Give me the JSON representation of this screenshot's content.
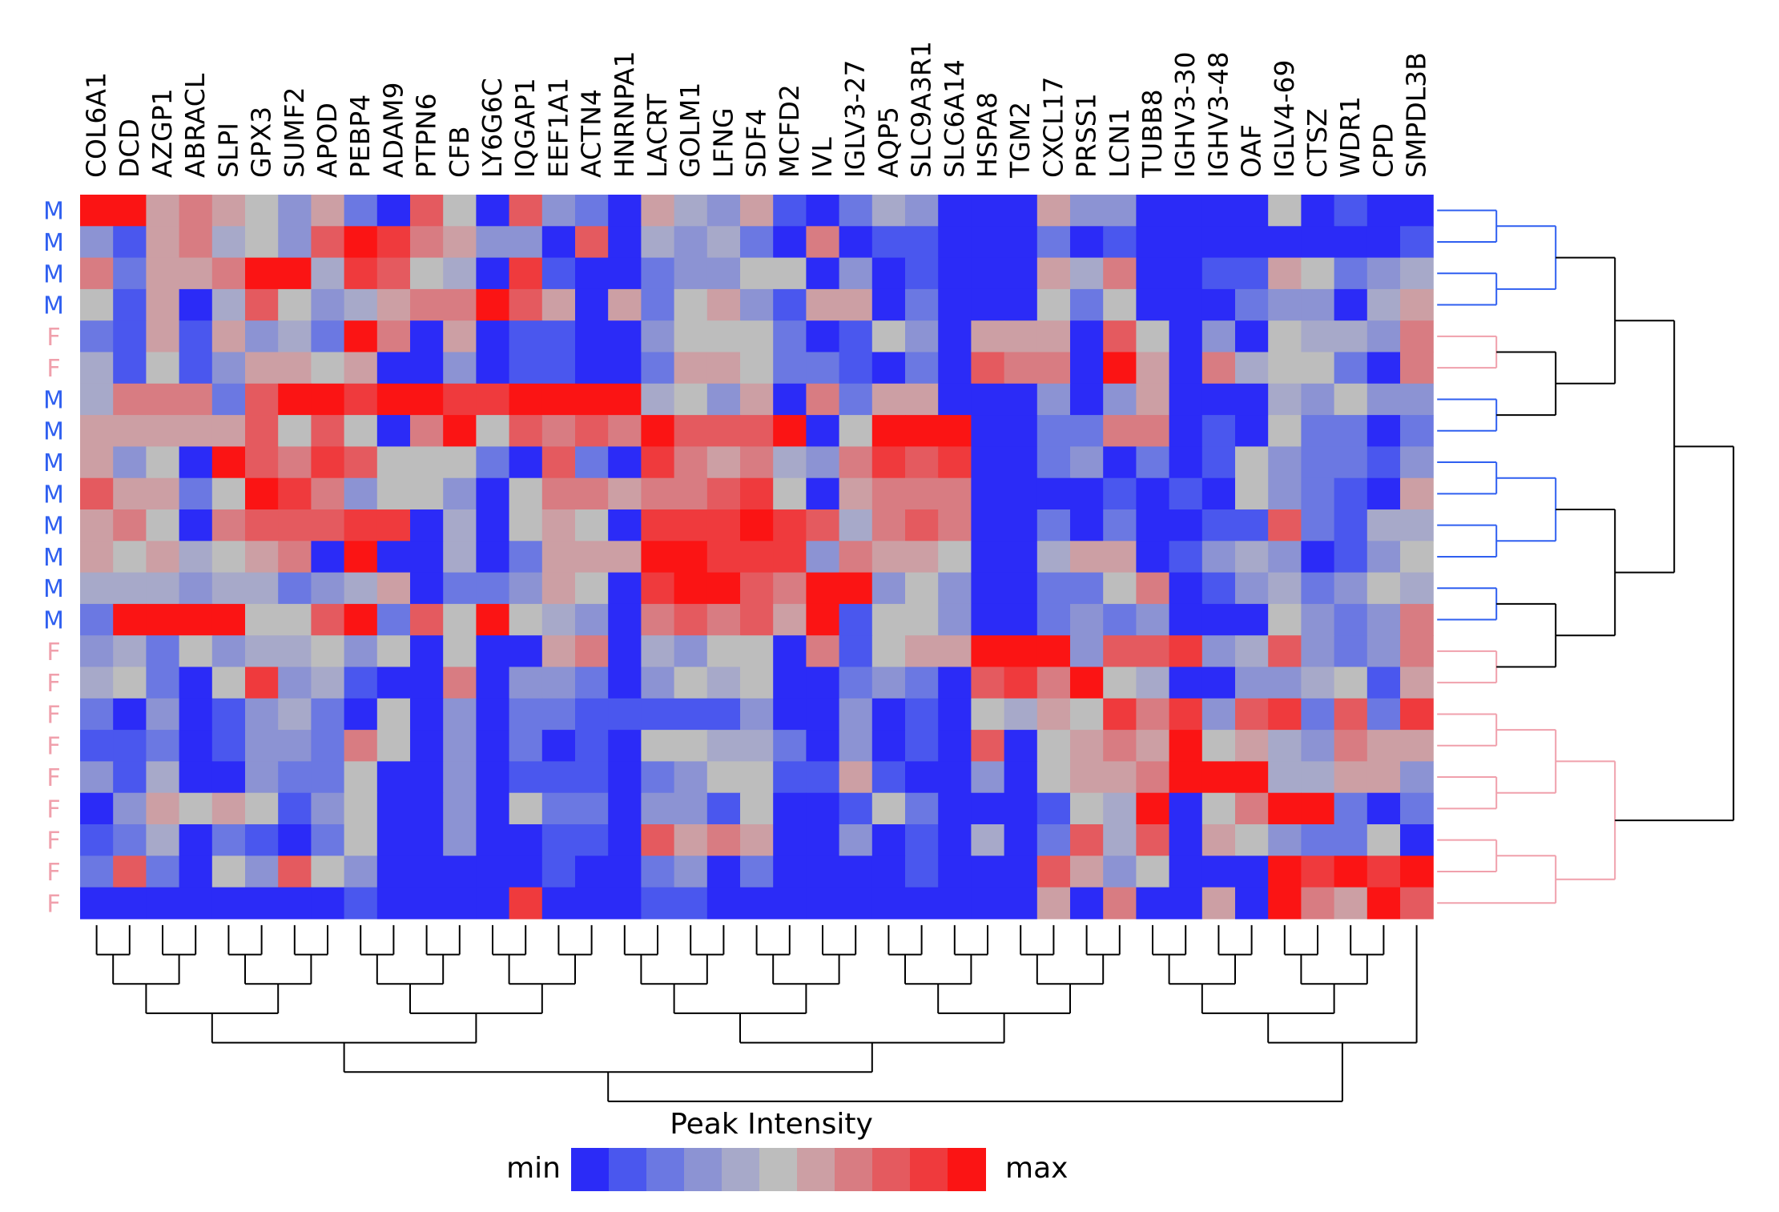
{
  "chart_data": {
    "type": "heatmap",
    "title": "",
    "columns": [
      "COL6A1",
      "DCD",
      "AZGP1",
      "ABRACL",
      "SLPI",
      "GPX3",
      "SUMF2",
      "APOD",
      "PEBP4",
      "ADAM9",
      "PTPN6",
      "CFB",
      "LY6G6C",
      "IQGAP1",
      "EEF1A1",
      "ACTN4",
      "HNRNPA1",
      "LACRT",
      "GOLM1",
      "LFNG",
      "SDF4",
      "MCFD2",
      "IVL",
      "IGLV3-27",
      "AQP5",
      "SLC9A3R1",
      "SLC6A14",
      "HSPA8",
      "TGM2",
      "CXCL17",
      "PRSS1",
      "LCN1",
      "TUBB8",
      "IGHV3-30",
      "IGHV3-48",
      "OAF",
      "IGLV4-69",
      "CTSZ",
      "WDR1",
      "CPD",
      "SMPDL3B"
    ],
    "rows": [
      "M",
      "M",
      "M",
      "M",
      "F",
      "F",
      "M",
      "M",
      "M",
      "M",
      "M",
      "M",
      "M",
      "M",
      "F",
      "F",
      "F",
      "F",
      "F",
      "F",
      "F",
      "F",
      "F"
    ],
    "value_scale": "level 0 (min) to 10 (max)",
    "values": [
      [
        10,
        10,
        6,
        7,
        6,
        5,
        3,
        6,
        2,
        0,
        8,
        5,
        0,
        8,
        3,
        2,
        0,
        6,
        4,
        3,
        6,
        1,
        0,
        2,
        4,
        3,
        0,
        0,
        0,
        6,
        3,
        3,
        0,
        0,
        0,
        0,
        5,
        0,
        1,
        0,
        0
      ],
      [
        3,
        1,
        6,
        7,
        4,
        5,
        3,
        8,
        10,
        9,
        7,
        6,
        3,
        3,
        0,
        8,
        0,
        4,
        3,
        4,
        2,
        0,
        7,
        0,
        1,
        1,
        0,
        0,
        0,
        2,
        0,
        1,
        0,
        0,
        0,
        0,
        0,
        0,
        0,
        0,
        1
      ],
      [
        7,
        2,
        6,
        6,
        7,
        10,
        10,
        4,
        9,
        8,
        5,
        4,
        0,
        9,
        1,
        0,
        0,
        2,
        3,
        3,
        5,
        5,
        0,
        3,
        0,
        1,
        0,
        0,
        0,
        6,
        4,
        7,
        0,
        0,
        1,
        1,
        6,
        5,
        2,
        3,
        4
      ],
      [
        5,
        1,
        6,
        0,
        4,
        8,
        5,
        3,
        4,
        6,
        7,
        7,
        10,
        8,
        6,
        0,
        6,
        2,
        5,
        6,
        3,
        1,
        6,
        6,
        0,
        2,
        0,
        0,
        0,
        5,
        2,
        5,
        0,
        0,
        0,
        2,
        3,
        3,
        0,
        4,
        6
      ],
      [
        2,
        1,
        6,
        1,
        6,
        3,
        4,
        2,
        10,
        7,
        0,
        6,
        0,
        1,
        1,
        0,
        0,
        3,
        5,
        5,
        5,
        2,
        0,
        1,
        5,
        3,
        0,
        6,
        6,
        6,
        0,
        8,
        5,
        0,
        3,
        0,
        5,
        4,
        4,
        3,
        7
      ],
      [
        4,
        1,
        5,
        1,
        3,
        6,
        6,
        5,
        6,
        0,
        0,
        3,
        0,
        1,
        1,
        0,
        0,
        2,
        6,
        6,
        5,
        2,
        2,
        1,
        0,
        2,
        0,
        8,
        7,
        7,
        0,
        10,
        6,
        0,
        7,
        4,
        5,
        5,
        2,
        0,
        7
      ],
      [
        4,
        7,
        7,
        7,
        2,
        8,
        10,
        10,
        9,
        10,
        10,
        9,
        9,
        10,
        10,
        10,
        10,
        4,
        5,
        3,
        6,
        0,
        7,
        2,
        6,
        6,
        0,
        0,
        0,
        3,
        0,
        3,
        6,
        0,
        0,
        0,
        4,
        3,
        5,
        3,
        3
      ],
      [
        6,
        6,
        6,
        6,
        6,
        8,
        5,
        8,
        5,
        0,
        7,
        10,
        5,
        8,
        7,
        8,
        7,
        10,
        8,
        8,
        8,
        10,
        0,
        5,
        10,
        10,
        10,
        0,
        0,
        2,
        2,
        7,
        7,
        0,
        1,
        0,
        5,
        2,
        2,
        0,
        2
      ],
      [
        6,
        3,
        5,
        0,
        10,
        8,
        7,
        9,
        8,
        5,
        5,
        5,
        2,
        0,
        8,
        2,
        0,
        9,
        7,
        6,
        7,
        4,
        3,
        7,
        9,
        8,
        9,
        0,
        0,
        2,
        3,
        0,
        2,
        0,
        1,
        5,
        3,
        2,
        2,
        1,
        3
      ],
      [
        8,
        6,
        6,
        2,
        5,
        10,
        9,
        7,
        3,
        5,
        5,
        3,
        0,
        5,
        7,
        7,
        6,
        7,
        7,
        8,
        9,
        5,
        0,
        6,
        7,
        7,
        7,
        0,
        0,
        0,
        0,
        1,
        0,
        1,
        0,
        5,
        3,
        2,
        1,
        0,
        6
      ],
      [
        6,
        7,
        5,
        0,
        7,
        8,
        8,
        8,
        9,
        9,
        0,
        4,
        0,
        5,
        6,
        5,
        0,
        9,
        9,
        9,
        10,
        9,
        8,
        4,
        7,
        8,
        7,
        0,
        0,
        2,
        0,
        2,
        0,
        0,
        1,
        1,
        8,
        2,
        1,
        4,
        4
      ],
      [
        6,
        5,
        6,
        4,
        5,
        6,
        7,
        0,
        10,
        0,
        0,
        4,
        0,
        2,
        6,
        6,
        6,
        10,
        10,
        9,
        9,
        9,
        3,
        7,
        6,
        6,
        5,
        0,
        0,
        4,
        6,
        6,
        0,
        1,
        3,
        4,
        3,
        0,
        1,
        3,
        5
      ],
      [
        4,
        4,
        4,
        3,
        4,
        4,
        2,
        3,
        4,
        6,
        0,
        2,
        2,
        3,
        6,
        5,
        0,
        9,
        10,
        10,
        8,
        7,
        10,
        10,
        3,
        5,
        3,
        0,
        0,
        2,
        2,
        5,
        7,
        0,
        1,
        3,
        4,
        2,
        3,
        5,
        4
      ],
      [
        2,
        10,
        10,
        10,
        10,
        5,
        5,
        8,
        10,
        2,
        8,
        5,
        10,
        5,
        4,
        3,
        0,
        7,
        8,
        7,
        8,
        6,
        10,
        1,
        5,
        5,
        3,
        0,
        0,
        2,
        3,
        2,
        3,
        0,
        0,
        0,
        5,
        3,
        2,
        3,
        7
      ],
      [
        3,
        4,
        2,
        5,
        3,
        4,
        4,
        5,
        3,
        5,
        0,
        5,
        0,
        0,
        6,
        7,
        0,
        4,
        3,
        5,
        5,
        0,
        7,
        1,
        5,
        6,
        6,
        10,
        10,
        10,
        3,
        8,
        8,
        9,
        3,
        4,
        8,
        3,
        2,
        3,
        7
      ],
      [
        4,
        5,
        2,
        0,
        5,
        9,
        3,
        4,
        1,
        0,
        0,
        7,
        0,
        3,
        3,
        2,
        0,
        3,
        5,
        4,
        5,
        0,
        0,
        2,
        3,
        2,
        0,
        8,
        9,
        7,
        10,
        5,
        4,
        0,
        0,
        3,
        3,
        4,
        5,
        1,
        6
      ],
      [
        2,
        0,
        3,
        0,
        1,
        3,
        4,
        2,
        0,
        5,
        0,
        3,
        0,
        2,
        2,
        1,
        1,
        1,
        1,
        1,
        3,
        0,
        0,
        3,
        0,
        1,
        0,
        5,
        4,
        6,
        5,
        9,
        7,
        9,
        3,
        8,
        9,
        2,
        8,
        2,
        9
      ],
      [
        1,
        1,
        2,
        0,
        1,
        3,
        3,
        2,
        7,
        5,
        0,
        3,
        0,
        2,
        0,
        1,
        0,
        5,
        5,
        4,
        4,
        2,
        0,
        3,
        0,
        1,
        0,
        8,
        0,
        5,
        6,
        7,
        6,
        10,
        5,
        6,
        4,
        3,
        7,
        6,
        6
      ],
      [
        3,
        1,
        4,
        0,
        0,
        3,
        2,
        2,
        5,
        0,
        0,
        3,
        0,
        1,
        1,
        1,
        0,
        2,
        3,
        5,
        5,
        1,
        1,
        6,
        1,
        0,
        0,
        3,
        0,
        5,
        6,
        6,
        7,
        10,
        10,
        10,
        4,
        4,
        6,
        6,
        3
      ],
      [
        0,
        3,
        6,
        5,
        6,
        5,
        1,
        3,
        5,
        0,
        0,
        3,
        0,
        5,
        2,
        2,
        0,
        3,
        3,
        1,
        5,
        0,
        0,
        1,
        5,
        2,
        0,
        0,
        0,
        1,
        5,
        4,
        10,
        0,
        5,
        7,
        10,
        10,
        2,
        0,
        2
      ],
      [
        1,
        2,
        4,
        0,
        2,
        1,
        0,
        2,
        5,
        0,
        0,
        3,
        0,
        0,
        1,
        1,
        0,
        8,
        6,
        7,
        6,
        0,
        0,
        3,
        0,
        1,
        0,
        4,
        0,
        2,
        8,
        4,
        8,
        0,
        6,
        5,
        3,
        2,
        2,
        5,
        0
      ],
      [
        2,
        8,
        2,
        0,
        5,
        3,
        8,
        5,
        3,
        0,
        0,
        0,
        0,
        0,
        1,
        0,
        0,
        2,
        3,
        0,
        2,
        0,
        0,
        0,
        0,
        1,
        0,
        0,
        0,
        8,
        6,
        3,
        5,
        0,
        0,
        0,
        10,
        9,
        10,
        9,
        10
      ],
      [
        0,
        0,
        0,
        0,
        0,
        0,
        0,
        0,
        1,
        0,
        0,
        0,
        0,
        9,
        0,
        0,
        0,
        1,
        1,
        0,
        0,
        0,
        0,
        0,
        0,
        0,
        0,
        0,
        0,
        6,
        0,
        7,
        0,
        0,
        6,
        0,
        10,
        7,
        6,
        10,
        8
      ]
    ],
    "legend": {
      "title": "Peak Intensity",
      "min_label": "min",
      "max_label": "max",
      "colors": [
        "#2b2bf7",
        "#4a57ee",
        "#6b78e2",
        "#8c93d3",
        "#a7a9c9",
        "#bdbdbd",
        "#cc9fa4",
        "#d87c82",
        "#e45a5f",
        "#ef3a3d",
        "#fb1414"
      ]
    },
    "row_colors": {
      "M": "#2f5ff0",
      "F": "#f0a0ac"
    }
  }
}
